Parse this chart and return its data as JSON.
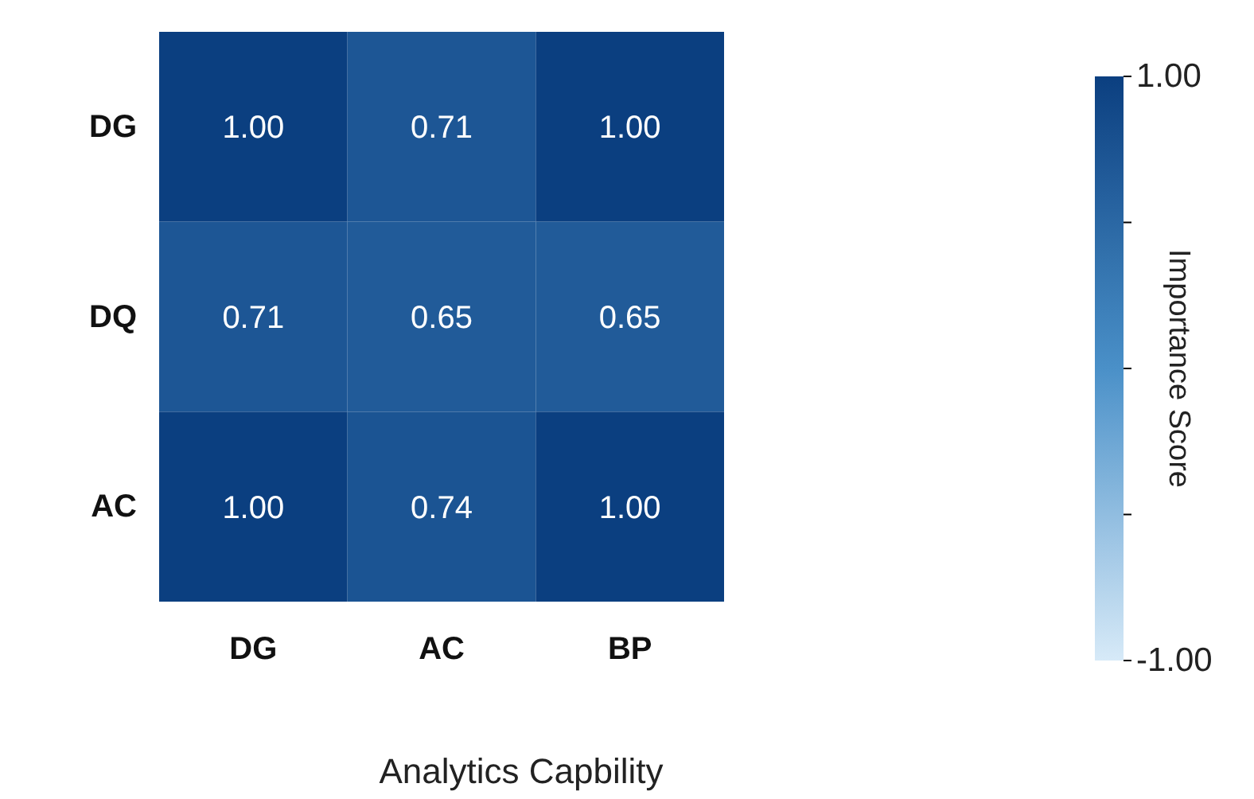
{
  "chart_data": {
    "type": "heatmap",
    "xlabel": "Analytics Capbility",
    "clabel": "Importance Score",
    "categories": [
      "DG",
      "AC",
      "BP"
    ],
    "y_categories": [
      "DG",
      "DQ",
      "AC"
    ],
    "cells": [
      [
        1.0,
        0.71,
        1.0
      ],
      [
        0.71,
        0.65,
        0.65
      ],
      [
        1.0,
        0.74,
        1.0
      ]
    ],
    "cell_labels": [
      [
        "1.00",
        "0.71",
        "1.00"
      ],
      [
        "0.71",
        "0.65",
        "0.65"
      ],
      [
        "1.00",
        "0.74",
        "1.00"
      ]
    ],
    "clim": [
      -1,
      1
    ],
    "cticks": [
      {
        "value": 1,
        "label": "1.00"
      },
      {
        "value": 0.5,
        "label": null
      },
      {
        "value": 0,
        "label": null
      },
      {
        "value": -0.5,
        "label": null
      },
      {
        "value": -1,
        "label": "-1.00"
      }
    ]
  }
}
